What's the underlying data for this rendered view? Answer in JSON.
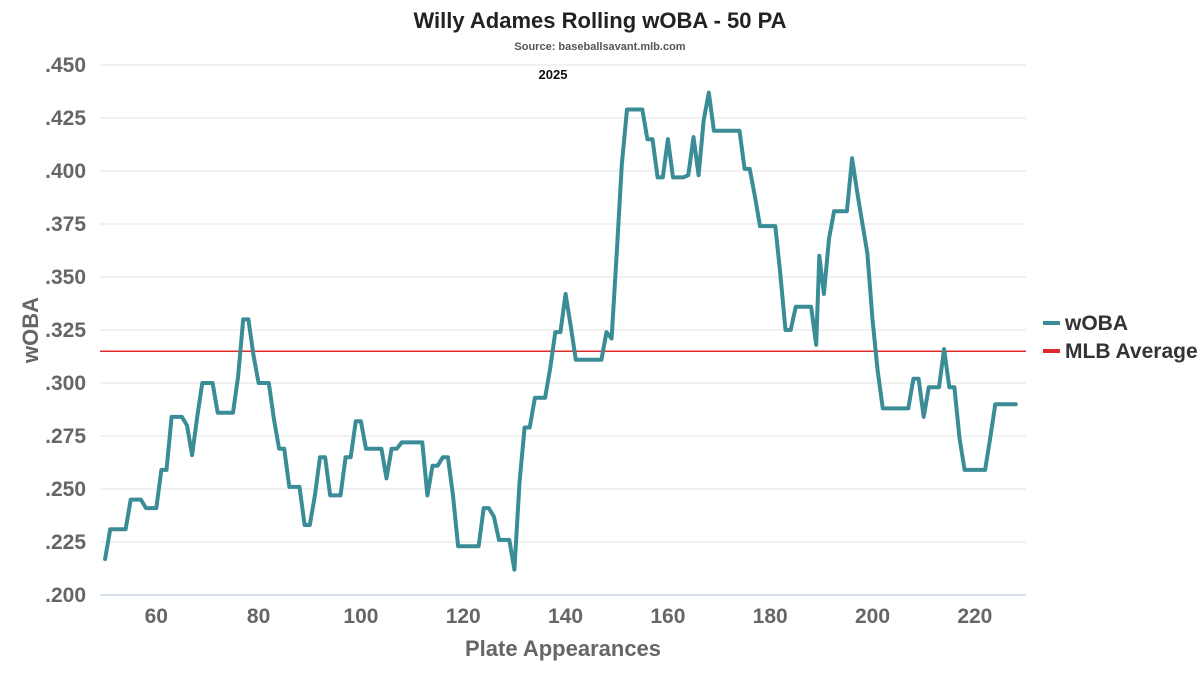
{
  "chart_data": {
    "type": "line",
    "title": "Willy Adames Rolling wOBA - 50 PA",
    "subtitle": "Source: baseballsavant.mlb.com",
    "annotation": "2025",
    "xlabel": "Plate Appearances",
    "ylabel": "wOBA",
    "xlim": [
      49,
      230
    ],
    "ylim": [
      0.2,
      0.45
    ],
    "xticks": [
      60,
      80,
      100,
      120,
      140,
      160,
      180,
      200,
      220
    ],
    "yticks": [
      0.2,
      0.225,
      0.25,
      0.275,
      0.3,
      0.325,
      0.35,
      0.375,
      0.4,
      0.425,
      0.45
    ],
    "ytick_labels": [
      ".200",
      ".225",
      ".250",
      ".275",
      ".300",
      ".325",
      ".350",
      ".375",
      ".400",
      ".425",
      ".450"
    ],
    "grid": true,
    "legend_position": "right",
    "series": [
      {
        "name": "wOBA",
        "color": "#3a8c96",
        "points": [
          [
            50,
            0.217
          ],
          [
            51,
            0.231
          ],
          [
            54,
            0.231
          ],
          [
            55,
            0.245
          ],
          [
            57,
            0.245
          ],
          [
            58,
            0.241
          ],
          [
            60,
            0.241
          ],
          [
            61,
            0.259
          ],
          [
            62,
            0.259
          ],
          [
            63,
            0.284
          ],
          [
            65,
            0.284
          ],
          [
            66,
            0.28
          ],
          [
            67,
            0.266
          ],
          [
            68,
            0.284
          ],
          [
            69,
            0.3
          ],
          [
            71,
            0.3
          ],
          [
            72,
            0.286
          ],
          [
            75,
            0.286
          ],
          [
            76,
            0.303
          ],
          [
            77,
            0.33
          ],
          [
            78,
            0.33
          ],
          [
            79,
            0.313
          ],
          [
            80,
            0.3
          ],
          [
            82,
            0.3
          ],
          [
            83,
            0.283
          ],
          [
            84,
            0.269
          ],
          [
            85,
            0.269
          ],
          [
            86,
            0.251
          ],
          [
            88,
            0.251
          ],
          [
            89,
            0.233
          ],
          [
            90,
            0.233
          ],
          [
            91,
            0.247
          ],
          [
            92,
            0.265
          ],
          [
            93,
            0.265
          ],
          [
            94,
            0.247
          ],
          [
            96,
            0.247
          ],
          [
            97,
            0.265
          ],
          [
            98,
            0.265
          ],
          [
            99,
            0.282
          ],
          [
            100,
            0.282
          ],
          [
            101,
            0.269
          ],
          [
            104,
            0.269
          ],
          [
            105,
            0.255
          ],
          [
            106,
            0.269
          ],
          [
            107,
            0.269
          ],
          [
            108,
            0.272
          ],
          [
            112,
            0.272
          ],
          [
            113,
            0.247
          ],
          [
            114,
            0.261
          ],
          [
            115,
            0.261
          ],
          [
            116,
            0.265
          ],
          [
            117,
            0.265
          ],
          [
            118,
            0.247
          ],
          [
            119,
            0.223
          ],
          [
            123,
            0.223
          ],
          [
            124,
            0.241
          ],
          [
            125,
            0.241
          ],
          [
            126,
            0.237
          ],
          [
            127,
            0.226
          ],
          [
            129,
            0.226
          ],
          [
            130,
            0.212
          ],
          [
            131,
            0.253
          ],
          [
            132,
            0.279
          ],
          [
            133,
            0.279
          ],
          [
            134,
            0.293
          ],
          [
            136,
            0.293
          ],
          [
            137,
            0.307
          ],
          [
            138,
            0.324
          ],
          [
            139,
            0.324
          ],
          [
            140,
            0.342
          ],
          [
            141,
            0.327
          ],
          [
            142,
            0.311
          ],
          [
            147,
            0.311
          ],
          [
            148,
            0.324
          ],
          [
            149,
            0.321
          ],
          [
            150,
            0.361
          ],
          [
            151,
            0.403
          ],
          [
            152,
            0.429
          ],
          [
            155,
            0.429
          ],
          [
            156,
            0.415
          ],
          [
            157,
            0.415
          ],
          [
            158,
            0.397
          ],
          [
            159,
            0.397
          ],
          [
            160,
            0.415
          ],
          [
            161,
            0.397
          ],
          [
            163,
            0.397
          ],
          [
            164,
            0.398
          ],
          [
            165,
            0.416
          ],
          [
            166,
            0.398
          ],
          [
            167,
            0.424
          ],
          [
            168,
            0.437
          ],
          [
            169,
            0.419
          ],
          [
            174,
            0.419
          ],
          [
            175,
            0.401
          ],
          [
            176,
            0.401
          ],
          [
            177,
            0.388
          ],
          [
            178,
            0.374
          ],
          [
            181,
            0.374
          ],
          [
            182,
            0.351
          ],
          [
            183,
            0.325
          ],
          [
            184,
            0.325
          ],
          [
            185,
            0.336
          ],
          [
            188,
            0.336
          ],
          [
            189,
            0.318
          ],
          [
            189.6,
            0.36
          ],
          [
            190.5,
            0.342
          ],
          [
            191.5,
            0.368
          ],
          [
            192.5,
            0.381
          ],
          [
            195,
            0.381
          ],
          [
            196,
            0.406
          ],
          [
            197,
            0.39
          ],
          [
            199,
            0.361
          ],
          [
            200,
            0.33
          ],
          [
            201,
            0.306
          ],
          [
            202,
            0.288
          ],
          [
            207,
            0.288
          ],
          [
            208,
            0.302
          ],
          [
            209,
            0.302
          ],
          [
            210,
            0.284
          ],
          [
            211,
            0.298
          ],
          [
            213,
            0.298
          ],
          [
            214,
            0.316
          ],
          [
            215,
            0.298
          ],
          [
            216,
            0.298
          ],
          [
            217,
            0.274
          ],
          [
            218,
            0.259
          ],
          [
            222,
            0.259
          ],
          [
            223,
            0.274
          ],
          [
            224,
            0.29
          ],
          [
            228,
            0.29
          ]
        ]
      },
      {
        "name": "MLB Average",
        "color": "#e02a2a",
        "value": 0.315
      }
    ]
  }
}
